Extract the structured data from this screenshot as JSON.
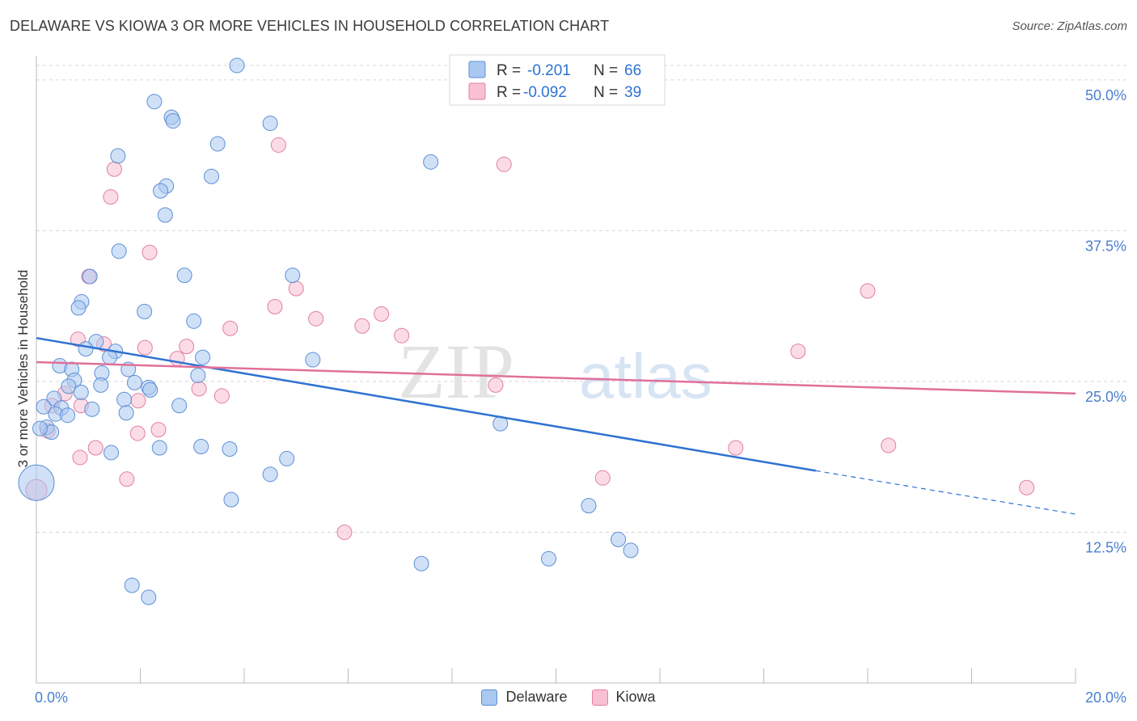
{
  "title": "DELAWARE VS KIOWA 3 OR MORE VEHICLES IN HOUSEHOLD CORRELATION CHART",
  "source": "Source: ZipAtlas.com",
  "watermark": {
    "part1": "ZIP",
    "part2": "atlas"
  },
  "legend_top": [
    {
      "r_label": "R =",
      "r_value": "-0.201",
      "n_label": "N =",
      "n_value": "66"
    },
    {
      "r_label": "R =",
      "r_value": "-0.092",
      "n_label": "N =",
      "n_value": "39"
    }
  ],
  "colors": {
    "delaware_fill": "#aac8f0",
    "delaware_stroke": "#5d8fd6",
    "delaware_line": "#2e72d2",
    "kiowa_fill": "#f8c0d2",
    "kiowa_stroke": "#e27fa0",
    "kiowa_line": "#e0709a",
    "value_text": "#2e72d2",
    "axis_text": "#4a7fd0",
    "grid": "#d8d8d8"
  },
  "chart_data": {
    "type": "scatter",
    "title": "DELAWARE VS KIOWA 3 OR MORE VEHICLES IN HOUSEHOLD CORRELATION CHART",
    "xlabel": "",
    "ylabel": "3 or more Vehicles in Household",
    "xlim": [
      0,
      20
    ],
    "ylim": [
      0,
      52
    ],
    "x_tick_labels": [
      {
        "value": 0,
        "label": "0.0%"
      },
      {
        "value": 20,
        "label": "20.0%"
      }
    ],
    "y_tick_labels": [
      {
        "value": 12.5,
        "label": "12.5%"
      },
      {
        "value": 25.0,
        "label": "25.0%"
      },
      {
        "value": 37.5,
        "label": "37.5%"
      },
      {
        "value": 50.0,
        "label": "50.0%"
      }
    ],
    "series": [
      {
        "name": "Delaware",
        "r": -0.201,
        "n": 66,
        "trend": {
          "x0": 0,
          "y0": 28.6,
          "x1": 15.0,
          "y1": 17.6,
          "dash_to_x": 20.0,
          "dash_to_y": 14.0
        },
        "points": [
          [
            3.86,
            51.2
          ],
          [
            2.27,
            48.2
          ],
          [
            2.6,
            46.9
          ],
          [
            2.63,
            46.6
          ],
          [
            4.5,
            46.4
          ],
          [
            1.57,
            43.7
          ],
          [
            3.49,
            44.7
          ],
          [
            7.59,
            43.2
          ],
          [
            3.37,
            42.0
          ],
          [
            2.5,
            41.2
          ],
          [
            2.39,
            40.8
          ],
          [
            2.48,
            38.8
          ],
          [
            1.59,
            35.8
          ],
          [
            2.85,
            33.8
          ],
          [
            4.93,
            33.8
          ],
          [
            1.03,
            33.7
          ],
          [
            0.87,
            31.6
          ],
          [
            0.81,
            31.1
          ],
          [
            2.08,
            30.8
          ],
          [
            3.03,
            30.0
          ],
          [
            1.15,
            28.3
          ],
          [
            0.95,
            27.7
          ],
          [
            1.52,
            27.5
          ],
          [
            1.41,
            27.0
          ],
          [
            3.2,
            27.0
          ],
          [
            5.32,
            26.8
          ],
          [
            0.45,
            26.3
          ],
          [
            1.77,
            26.0
          ],
          [
            0.68,
            26.0
          ],
          [
            3.11,
            25.5
          ],
          [
            0.73,
            25.1
          ],
          [
            0.62,
            24.6
          ],
          [
            1.26,
            25.7
          ],
          [
            1.24,
            24.7
          ],
          [
            1.89,
            24.9
          ],
          [
            2.16,
            24.5
          ],
          [
            0.86,
            24.1
          ],
          [
            2.19,
            24.3
          ],
          [
            0.34,
            23.6
          ],
          [
            1.69,
            23.5
          ],
          [
            2.75,
            23.0
          ],
          [
            0.14,
            22.9
          ],
          [
            0.48,
            22.8
          ],
          [
            1.07,
            22.7
          ],
          [
            0.37,
            22.3
          ],
          [
            0.6,
            22.2
          ],
          [
            1.73,
            22.4
          ],
          [
            8.93,
            21.5
          ],
          [
            0.2,
            21.2
          ],
          [
            0.29,
            20.8
          ],
          [
            0.07,
            21.1
          ],
          [
            2.37,
            19.5
          ],
          [
            3.17,
            19.6
          ],
          [
            3.72,
            19.4
          ],
          [
            1.44,
            19.1
          ],
          [
            4.82,
            18.6
          ],
          [
            4.5,
            17.3
          ],
          [
            0.0,
            16.6
          ],
          [
            3.75,
            15.2
          ],
          [
            10.63,
            14.7
          ],
          [
            11.2,
            11.9
          ],
          [
            11.44,
            11.0
          ],
          [
            9.86,
            10.3
          ],
          [
            7.41,
            9.9
          ],
          [
            1.84,
            8.1
          ],
          [
            2.16,
            7.1
          ]
        ]
      },
      {
        "name": "Kiowa",
        "r": -0.092,
        "n": 39,
        "trend": {
          "x0": 0,
          "y0": 26.6,
          "x1": 20.0,
          "y1": 24.0
        },
        "points": [
          [
            4.66,
            44.6
          ],
          [
            9.0,
            43.0
          ],
          [
            1.5,
            42.6
          ],
          [
            1.43,
            40.3
          ],
          [
            2.18,
            35.7
          ],
          [
            1.01,
            33.7
          ],
          [
            16.0,
            32.5
          ],
          [
            5.0,
            32.7
          ],
          [
            4.59,
            31.2
          ],
          [
            6.64,
            30.6
          ],
          [
            5.38,
            30.2
          ],
          [
            6.27,
            29.6
          ],
          [
            3.73,
            29.4
          ],
          [
            7.03,
            28.8
          ],
          [
            0.8,
            28.5
          ],
          [
            1.3,
            28.1
          ],
          [
            2.09,
            27.8
          ],
          [
            2.89,
            27.9
          ],
          [
            14.66,
            27.5
          ],
          [
            2.71,
            26.9
          ],
          [
            8.84,
            24.7
          ],
          [
            3.13,
            24.4
          ],
          [
            0.55,
            24.0
          ],
          [
            3.57,
            23.8
          ],
          [
            1.96,
            23.4
          ],
          [
            0.3,
            23.0
          ],
          [
            0.86,
            23.0
          ],
          [
            2.35,
            21.0
          ],
          [
            1.95,
            20.7
          ],
          [
            0.22,
            20.9
          ],
          [
            13.46,
            19.5
          ],
          [
            16.4,
            19.7
          ],
          [
            1.14,
            19.5
          ],
          [
            0.84,
            18.7
          ],
          [
            10.9,
            17.0
          ],
          [
            1.74,
            16.9
          ],
          [
            0.0,
            16.0
          ],
          [
            19.06,
            16.2
          ],
          [
            5.93,
            12.5
          ]
        ]
      }
    ]
  }
}
